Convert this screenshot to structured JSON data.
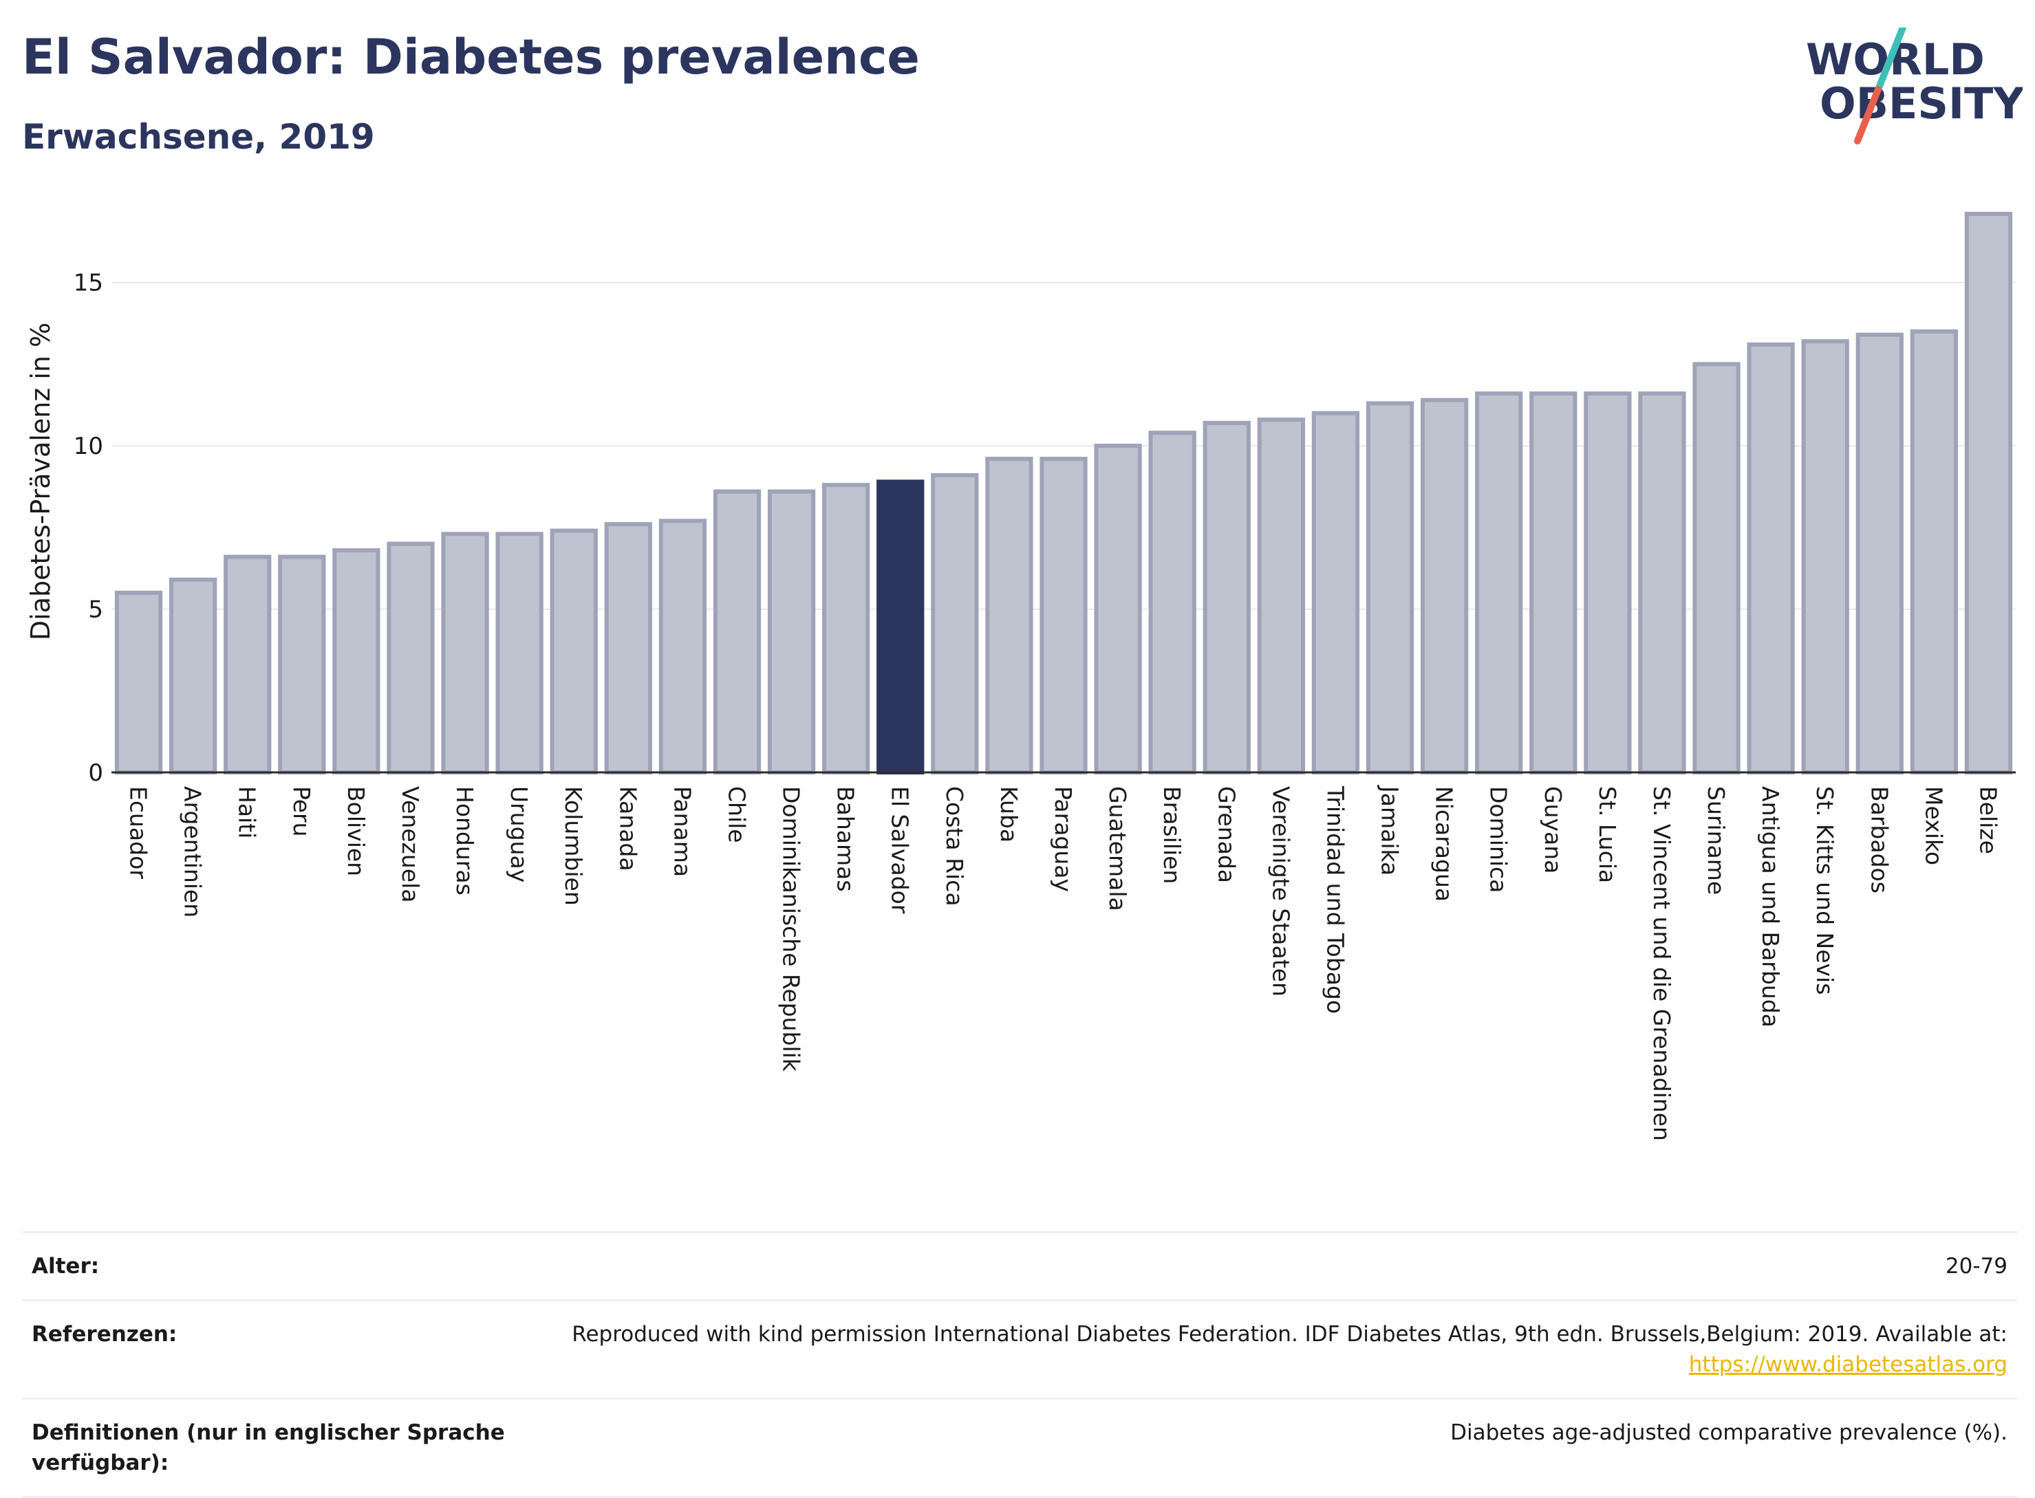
{
  "header": {
    "title": "El Salvador: Diabetes prevalence",
    "subtitle": "Erwachsene, 2019"
  },
  "logo": {
    "line1": "WORLD",
    "line2": "OBESITY",
    "accent_teal": "#3dbfb8",
    "accent_red": "#e8604c"
  },
  "colors": {
    "bar": "#bfc3d0",
    "bar_edge": "#9ea3b8",
    "highlight": "#2b355e",
    "grid": "#e6e8ee"
  },
  "chart_data": {
    "type": "bar",
    "ylabel": "Diabetes-Prävalenz in %",
    "ylim": [
      0,
      17.5
    ],
    "yticks": [
      0,
      5,
      10,
      15
    ],
    "highlight": "El Salvador",
    "categories": [
      "Ecuador",
      "Argentinien",
      "Haiti",
      "Peru",
      "Bolivien",
      "Venezuela",
      "Honduras",
      "Uruguay",
      "Kolumbien",
      "Kanada",
      "Panama",
      "Chile",
      "Dominikanische Republik",
      "Bahamas",
      "El Salvador",
      "Costa Rica",
      "Kuba",
      "Paraguay",
      "Guatemala",
      "Brasilien",
      "Grenada",
      "Vereinigte Staaten",
      "Trinidad und Tobago",
      "Jamaika",
      "Nicaragua",
      "Dominica",
      "Guyana",
      "St. Lucia",
      "St. Vincent und die Grenadinen",
      "Suriname",
      "Antigua und Barbuda",
      "St. Kitts und Nevis",
      "Barbados",
      "Mexiko",
      "Belize"
    ],
    "values": [
      5.5,
      5.9,
      6.6,
      6.6,
      6.8,
      7.0,
      7.3,
      7.3,
      7.4,
      7.6,
      7.7,
      8.6,
      8.6,
      8.8,
      8.9,
      9.1,
      9.6,
      9.6,
      10.0,
      10.4,
      10.7,
      10.8,
      11.0,
      11.3,
      11.4,
      11.6,
      11.6,
      11.6,
      11.6,
      12.5,
      13.1,
      13.2,
      13.4,
      13.5,
      17.1
    ]
  },
  "info": {
    "age_label": "Alter:",
    "age_value": "20-79",
    "ref_label": "Referenzen:",
    "ref_text": "Reproduced with kind permission International Diabetes Federation. IDF Diabetes Atlas, 9th edn. Brussels,Belgium: 2019. Available at:",
    "ref_link": "https://www.diabetesatlas.org",
    "def_label": "Definitionen (nur in englischer Sprache verfügbar):",
    "def_text": "Diabetes age-adjusted comparative prevalence (%)."
  }
}
